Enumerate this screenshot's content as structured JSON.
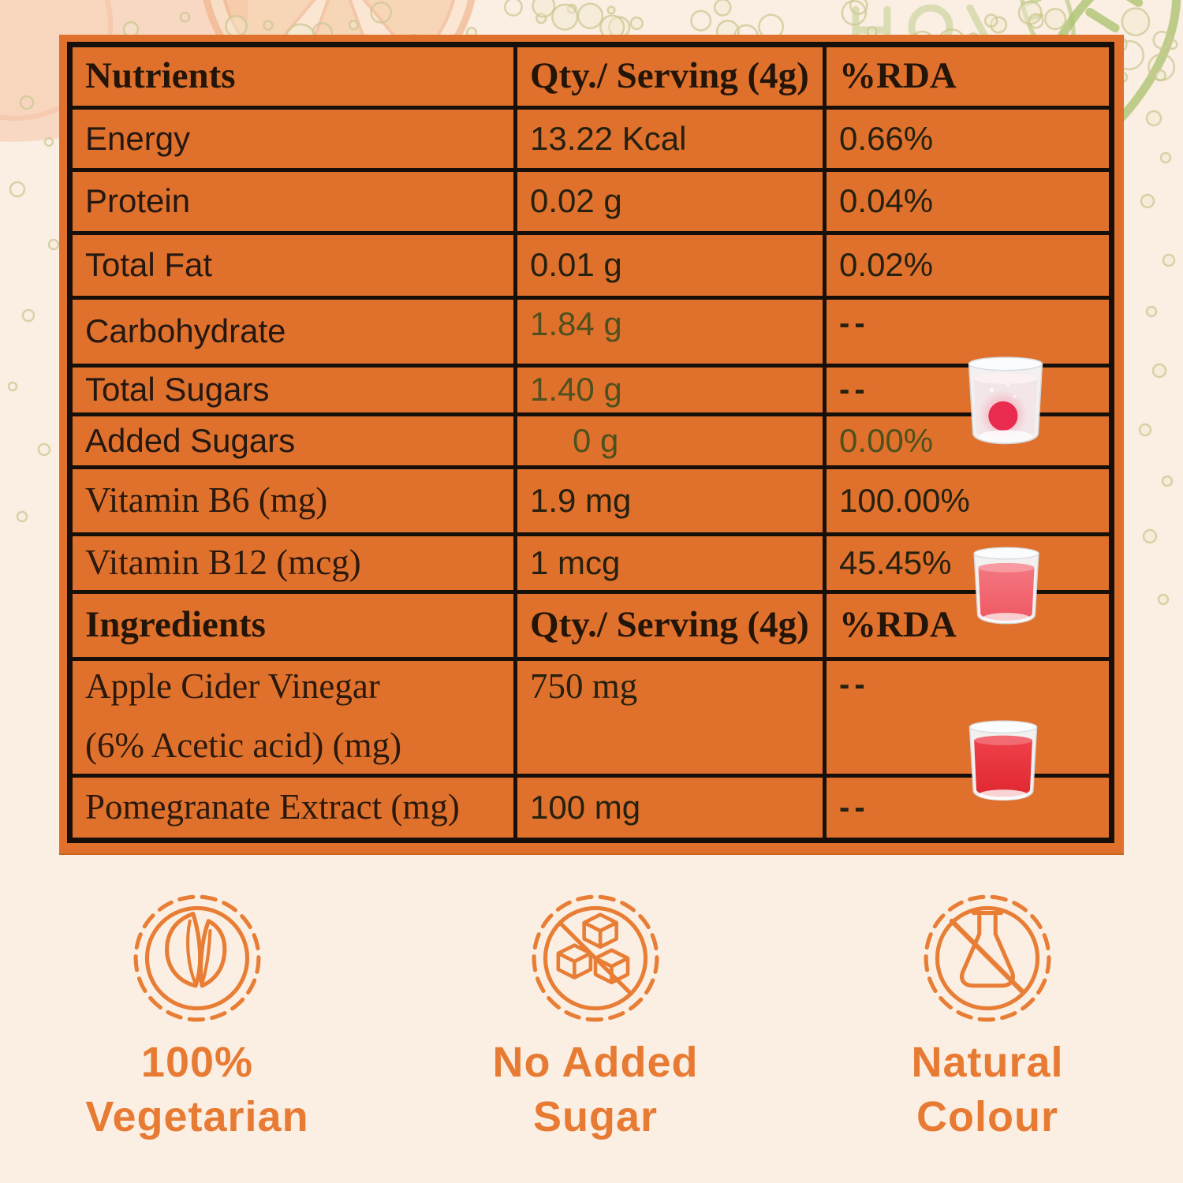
{
  "title": "Nutrition information label",
  "table": {
    "rows": [
      {
        "c0": "Nutrients",
        "c1": "Qty./ Serving (4g)",
        "c2": "%RDA"
      },
      {
        "c0": "Energy",
        "c1": "13.22 Kcal",
        "c2": "0.66%"
      },
      {
        "c0": "Protein",
        "c1": "0.02 g",
        "c2": "0.04%"
      },
      {
        "c0": "Total Fat",
        "c1": "0.01 g",
        "c2": "0.02%"
      },
      {
        "c0": "Carbohydrate",
        "c1": "1.84 g",
        "c2": "--"
      },
      {
        "c0": "Total Sugars",
        "c1": "1.40 g",
        "c2": "--"
      },
      {
        "c0": "Added Sugars",
        "c1": "0 g",
        "c2": "0.00%"
      },
      {
        "c0": "Vitamin B6 (mg)",
        "c1": "1.9 mg",
        "c2": "100.00%"
      },
      {
        "c0": "Vitamin B12 (mcg)",
        "c1": "1 mcg",
        "c2": "45.45%"
      },
      {
        "c0": "Ingredients",
        "c1": "Qty./ Serving (4g)",
        "c2": "%RDA"
      },
      {
        "c0": "Apple Cider Vinegar",
        "c0b": "(6% Acetic acid) (mg)",
        "c1": "750 mg",
        "c2": "--"
      },
      {
        "c0": "Pomegranate Extract (mg)",
        "c1": "100 mg",
        "c2": "--"
      }
    ]
  },
  "badges": [
    {
      "icon": "vegetarian-leaves-icon",
      "line1": "100%",
      "line2": "Vegetarian"
    },
    {
      "icon": "no-added-sugar-cubes-icon",
      "line1": "No Added",
      "line2": "Sugar"
    },
    {
      "icon": "natural-colour-no-flask-icon",
      "line1": "Natural",
      "line2": "Colour"
    }
  ],
  "decor": {
    "glasses": [
      "glass-water-dissolving-red-tablet",
      "glass-pink-drink",
      "glass-red-drink"
    ],
    "background": "citrus-slice-fizz-bubbles-green-leaf-doodles"
  },
  "colors": {
    "panel_orange": "#e0712c",
    "table_border_black": "#17100a",
    "text_dark": "#25180c",
    "value_olive": "#4e511d",
    "badge_orange": "#e87b33",
    "background_cream": "#fbeee2"
  }
}
